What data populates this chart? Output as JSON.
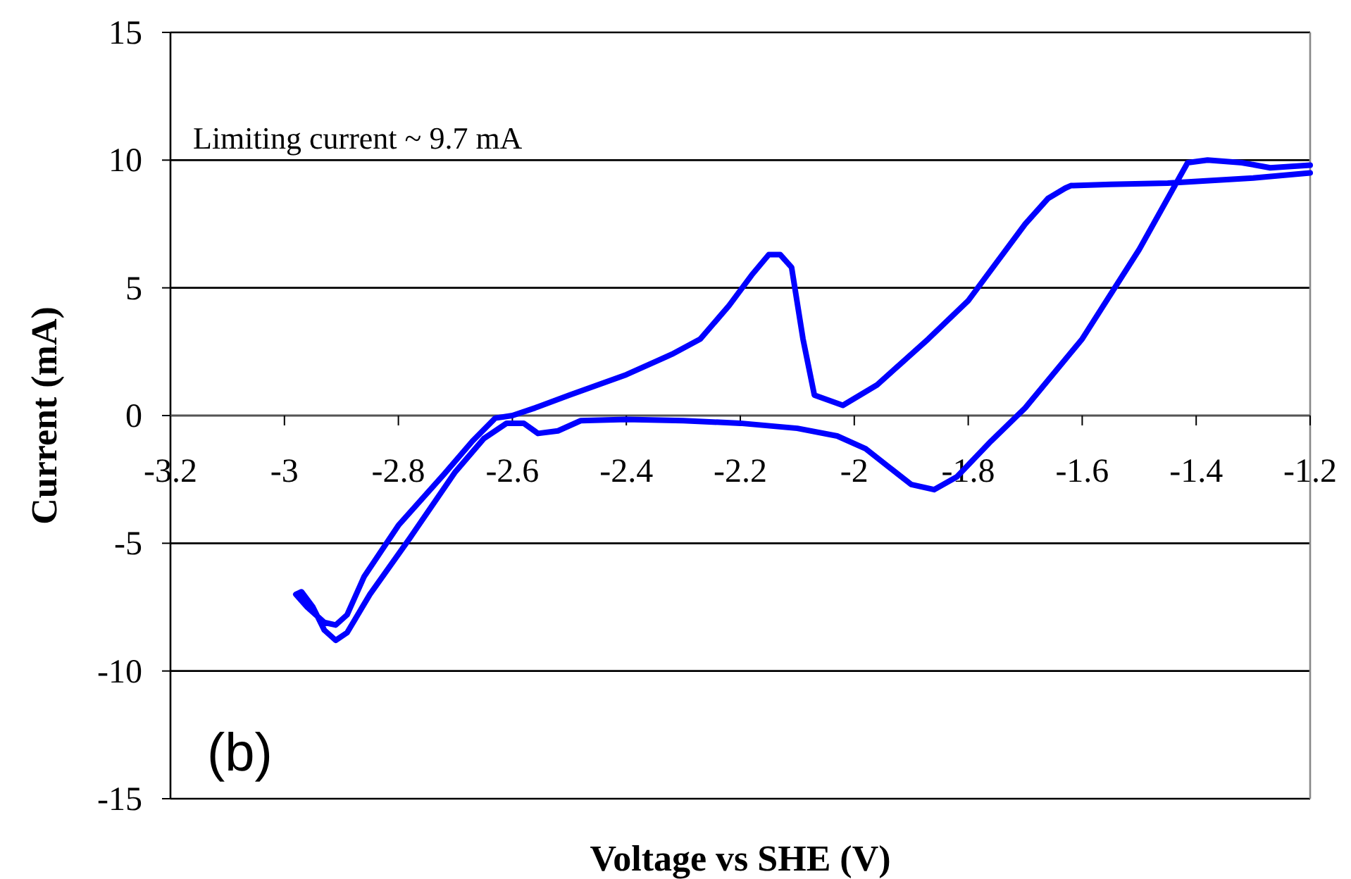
{
  "chart_data": {
    "type": "line",
    "xlabel": "Voltage vs SHE (V)",
    "ylabel": "Current (mA)",
    "xlim": [
      -3.2,
      -1.2
    ],
    "xticks": [
      -3.2,
      -3,
      -2.8,
      -2.6,
      -2.4,
      -2.2,
      -2,
      -1.8,
      -1.6,
      -1.4,
      -1.2
    ],
    "ylim": [
      -15,
      15
    ],
    "yticks": [
      -15,
      -10,
      -5,
      0,
      5,
      10,
      15
    ],
    "grid": "y",
    "marker": "none",
    "line_style": "solid",
    "annotations": [
      "Limiting current ~ 9.7 mA",
      "(b)"
    ],
    "series": [
      {
        "color": "#0000ff",
        "x": [
          -1.2,
          -1.3,
          -1.45,
          -1.55,
          -1.62,
          -1.63,
          -1.66,
          -1.7,
          -1.75,
          -1.8,
          -1.87,
          -1.92,
          -1.96,
          -2.02,
          -2.07,
          -2.09,
          -2.11,
          -2.13,
          -2.15,
          -2.18,
          -2.22,
          -2.27,
          -2.32,
          -2.4,
          -2.5,
          -2.56,
          -2.6,
          -2.63,
          -2.67,
          -2.72,
          -2.8,
          -2.86,
          -2.89,
          -2.91,
          -2.93,
          -2.96,
          -2.98,
          -2.97,
          -2.95,
          -2.93,
          -2.91,
          -2.89,
          -2.85,
          -2.78,
          -2.7,
          -2.65,
          -2.61,
          -2.58,
          -2.555,
          -2.52,
          -2.48,
          -2.4,
          -2.3,
          -2.2,
          -2.1,
          -2.03,
          -1.98,
          -1.94,
          -1.9,
          -1.86,
          -1.82,
          -1.76,
          -1.7,
          -1.6,
          -1.5,
          -1.45,
          -1.415,
          -1.38,
          -1.32,
          -1.27,
          -1.2
        ],
        "values": [
          9.5,
          9.3,
          9.1,
          9.05,
          9.0,
          8.9,
          8.5,
          7.5,
          6.0,
          4.5,
          3.0,
          2.0,
          1.2,
          0.4,
          0.8,
          3.0,
          5.8,
          6.3,
          6.3,
          5.5,
          4.3,
          3.0,
          2.4,
          1.6,
          0.8,
          0.3,
          0.0,
          -0.1,
          -1.0,
          -2.3,
          -4.3,
          -6.3,
          -7.8,
          -8.2,
          -8.1,
          -7.5,
          -7.0,
          -6.9,
          -7.5,
          -8.4,
          -8.8,
          -8.5,
          -7.0,
          -4.8,
          -2.2,
          -0.9,
          -0.3,
          -0.3,
          -0.7,
          -0.6,
          -0.2,
          -0.15,
          -0.2,
          -0.3,
          -0.5,
          -0.8,
          -1.3,
          -2.0,
          -2.7,
          -2.9,
          -2.4,
          -1.0,
          0.3,
          3.0,
          6.5,
          8.5,
          9.9,
          10.0,
          9.9,
          9.7,
          9.8
        ]
      }
    ]
  }
}
